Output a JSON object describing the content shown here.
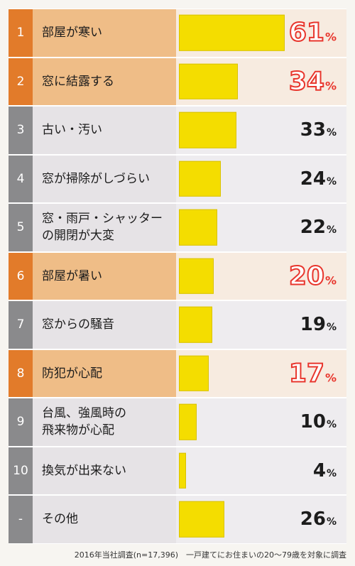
{
  "chart_data": {
    "type": "bar",
    "orientation": "horizontal",
    "xlim": [
      0,
      100
    ],
    "rows": [
      {
        "rank": "1",
        "label": "部屋が寒い",
        "value": 61,
        "highlight": true
      },
      {
        "rank": "2",
        "label": "窓に結露する",
        "value": 34,
        "highlight": true
      },
      {
        "rank": "3",
        "label": "古い・汚い",
        "value": 33,
        "highlight": false
      },
      {
        "rank": "4",
        "label": "窓が掃除がしづらい",
        "value": 24,
        "highlight": false
      },
      {
        "rank": "5",
        "label": "窓・雨戸・シャッター\nの開閉が大変",
        "value": 22,
        "highlight": false
      },
      {
        "rank": "6",
        "label": "部屋が暑い",
        "value": 20,
        "highlight": true
      },
      {
        "rank": "7",
        "label": "窓からの騒音",
        "value": 19,
        "highlight": false
      },
      {
        "rank": "8",
        "label": "防犯が心配",
        "value": 17,
        "highlight": true
      },
      {
        "rank": "9",
        "label": "台風、強風時の\n飛来物が心配",
        "value": 10,
        "highlight": false
      },
      {
        "rank": "10",
        "label": "換気が出来ない",
        "value": 4,
        "highlight": false
      },
      {
        "rank": "-",
        "label": "その他",
        "value": 26,
        "highlight": false
      }
    ],
    "unit": "%",
    "bar_color": "#f4dd00",
    "highlight_color": "#e8362d"
  },
  "footnote": "2016年当社調査(n=17,396)　一戸建てにお住まいの20～79歳を対象に調査"
}
